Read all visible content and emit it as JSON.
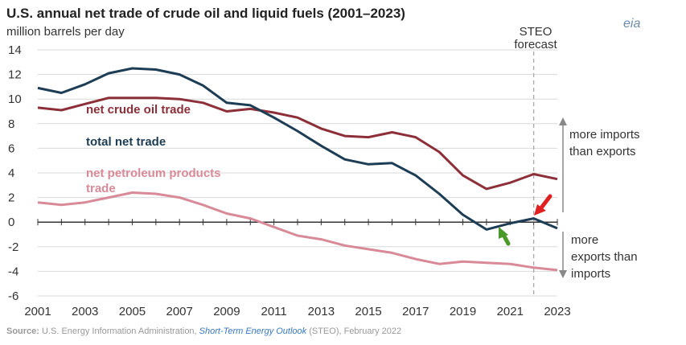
{
  "chart_data": {
    "type": "line",
    "title": "U.S. annual net trade of crude oil and liquid fuels (2001–2023)",
    "ylabel": "million barrels per day",
    "ylim": [
      -6,
      14
    ],
    "y_ticks": [
      "14",
      "12",
      "10",
      "8",
      "6",
      "4",
      "2",
      "0",
      "-2",
      "-4",
      "-6"
    ],
    "x_ticks": [
      "2001",
      "2003",
      "2005",
      "2007",
      "2009",
      "2011",
      "2013",
      "2015",
      "2017",
      "2019",
      "2021",
      "2023"
    ],
    "x": [
      2001,
      2002,
      2003,
      2004,
      2005,
      2006,
      2007,
      2008,
      2009,
      2010,
      2011,
      2012,
      2013,
      2014,
      2015,
      2016,
      2017,
      2018,
      2019,
      2020,
      2021,
      2022,
      2023
    ],
    "series": [
      {
        "name": "net crude oil trade",
        "color": "#8c2f39",
        "values": [
          9.3,
          9.1,
          9.6,
          10.1,
          10.1,
          10.1,
          10.0,
          9.7,
          9.0,
          9.2,
          8.9,
          8.5,
          7.6,
          7.0,
          6.9,
          7.3,
          6.9,
          5.7,
          3.8,
          2.7,
          3.2,
          3.9,
          3.5
        ]
      },
      {
        "name": "total net trade",
        "color": "#1d3d55",
        "values": [
          10.9,
          10.5,
          11.2,
          12.1,
          12.5,
          12.4,
          12.0,
          11.1,
          9.7,
          9.5,
          8.5,
          7.4,
          6.2,
          5.1,
          4.7,
          4.8,
          3.8,
          2.3,
          0.6,
          -0.6,
          -0.1,
          0.3,
          -0.5
        ]
      },
      {
        "name": "net petroleum products trade",
        "label_lines": [
          "net petroleum products",
          "trade"
        ],
        "color": "#d88a98",
        "values": [
          1.6,
          1.4,
          1.6,
          2.0,
          2.4,
          2.3,
          2.0,
          1.4,
          0.7,
          0.3,
          -0.4,
          -1.1,
          -1.4,
          -1.9,
          -2.2,
          -2.5,
          -3.0,
          -3.4,
          -3.2,
          -3.3,
          -3.4,
          -3.7,
          -3.9
        ]
      }
    ],
    "forecast_year": 2022,
    "forecast_label": [
      "STEO",
      "forecast"
    ],
    "grid": true,
    "annotations": {
      "imports_label": [
        "more imports",
        "than exports"
      ],
      "exports_label": [
        "more",
        "exports than",
        "imports"
      ],
      "red_arrow_color": "#e02020",
      "green_arrow_color": "#4b9a2a"
    },
    "source": {
      "prefix": "Source:",
      "text": " U.S. Energy Information Administration, ",
      "link": "Short-Term Energy Outlook",
      "suffix": " (STEO), February 2022"
    },
    "logo": "eia"
  }
}
